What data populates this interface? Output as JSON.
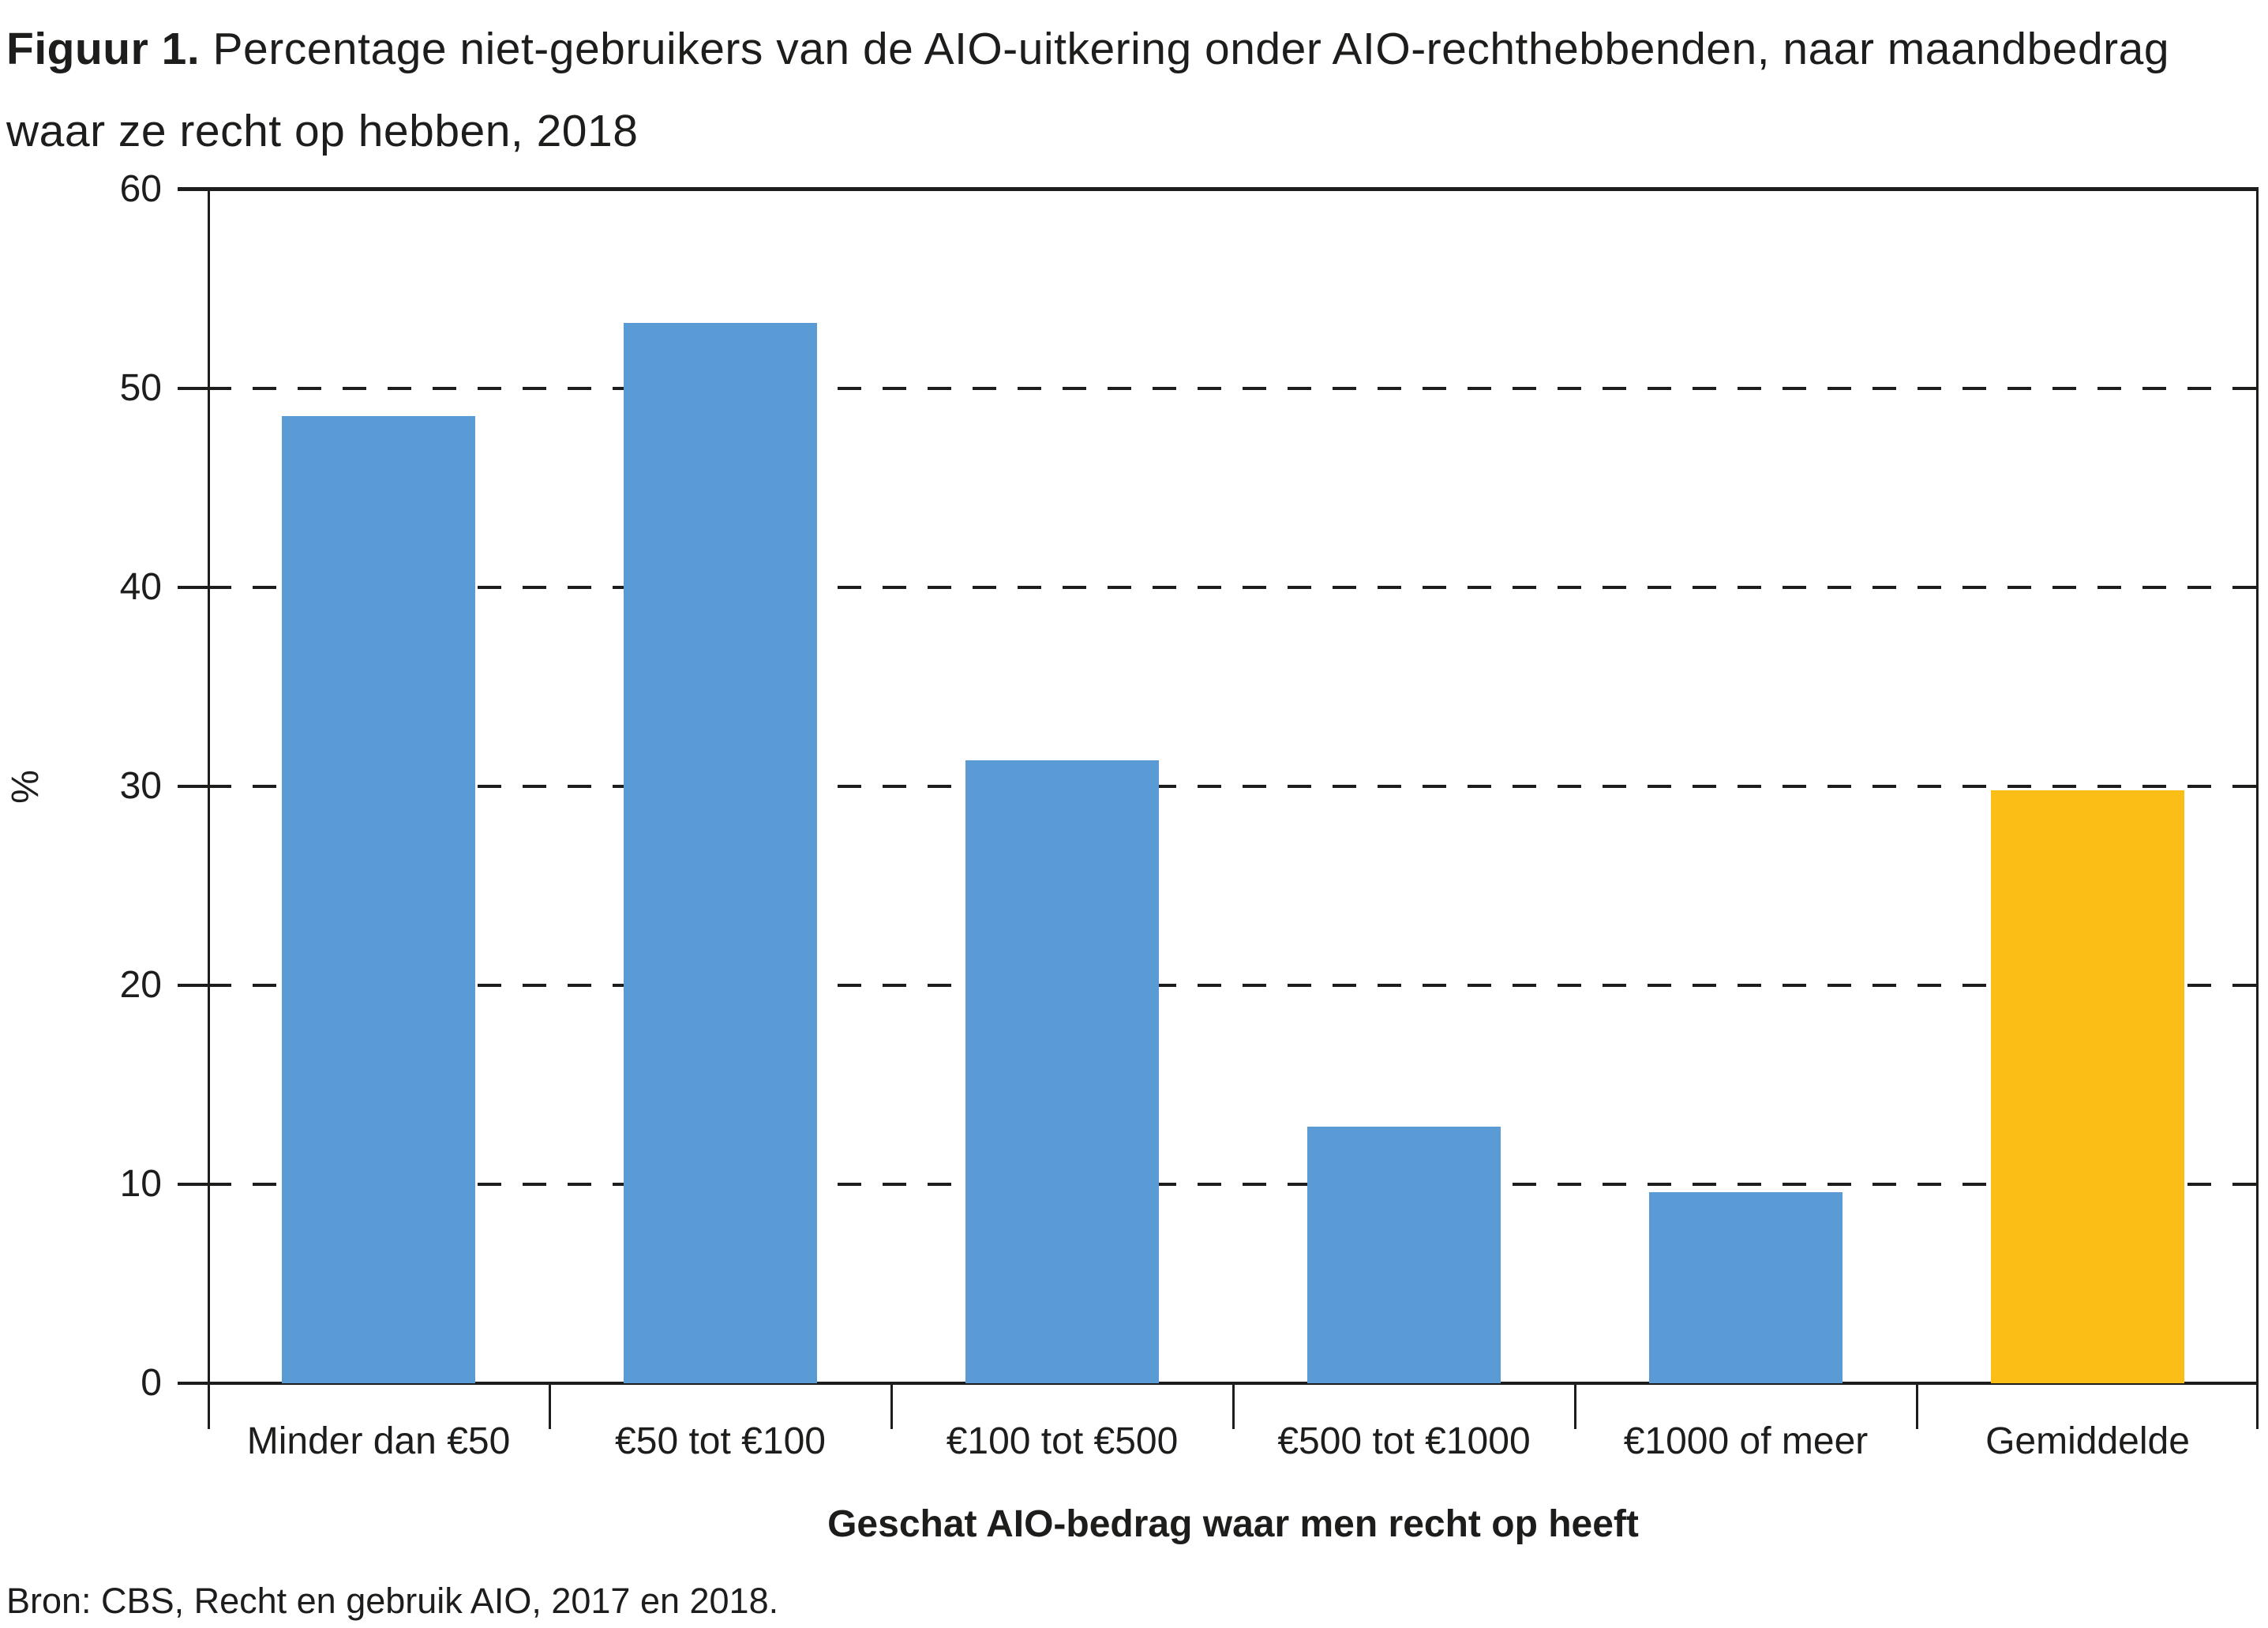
{
  "header": {
    "figure_label": "Figuur 1.",
    "title_line1_rest": " Percentage niet-gebruikers van de AIO-uitkering onder AIO-rechthebbenden, naar maandbedrag",
    "title_line2": "waar ze recht op hebben, 2018"
  },
  "footer": {
    "source": "Bron: CBS, Recht en gebruik AIO, 2017 en 2018."
  },
  "chart_data": {
    "type": "bar",
    "title": "Figuur 1. Percentage niet-gebruikers van de AIO-uitkering onder AIO-rechthebbenden, naar maandbedrag waar ze recht op hebben, 2018",
    "categories": [
      "Minder dan €50",
      "€50 tot €100",
      "€100 tot €500",
      "€500 tot €1000",
      "€1000 of meer",
      "Gemiddelde"
    ],
    "values": [
      48.6,
      53.3,
      31.3,
      12.9,
      9.6,
      29.8
    ],
    "highlight_index": 5,
    "colors": {
      "bar": "#5b9bd5",
      "highlight": "#fbbe17",
      "axis": "#1d1d1b"
    },
    "xlabel": "Geschat AIO-bedrag waar men recht op heeft",
    "ylabel": "%",
    "ylim": [
      0,
      60
    ],
    "yticks": [
      0,
      10,
      20,
      30,
      40,
      50,
      60
    ],
    "grid": "dashed-horizontal",
    "legend": "none",
    "source": "Bron: CBS, Recht en gebruik AIO, 2017 en 2018."
  }
}
